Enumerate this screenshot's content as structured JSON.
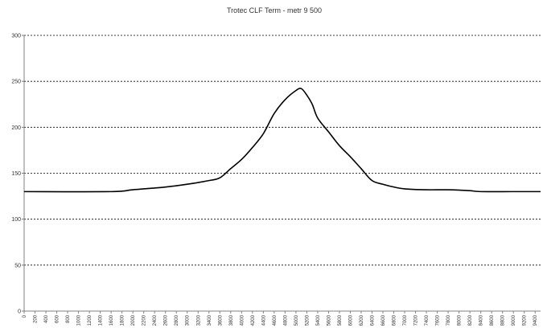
{
  "chart_data": {
    "type": "line",
    "title": "Trotec CLF Term - metr 9 500",
    "xlabel": "",
    "ylabel": "",
    "ylim": [
      0,
      300
    ],
    "yticks": [
      0,
      50,
      100,
      150,
      200,
      250,
      300
    ],
    "xlim": [
      0,
      9500
    ],
    "x_tick_step": 200,
    "grid": "horizontal-dashed",
    "legend": "none",
    "series": [
      {
        "color": "#000000",
        "x": [
          0,
          1600,
          2000,
          2600,
          3000,
          3400,
          3600,
          3800,
          4000,
          4200,
          4400,
          4600,
          4800,
          5000,
          5100,
          5200,
          5300,
          5400,
          5600,
          5800,
          6000,
          6200,
          6400,
          6600,
          6800,
          7000,
          7400,
          7800,
          8200,
          8400,
          9000,
          9500
        ],
        "y": [
          130,
          130,
          132,
          135,
          138,
          142,
          145,
          155,
          165,
          178,
          193,
          215,
          230,
          240,
          242,
          235,
          225,
          210,
          195,
          180,
          168,
          155,
          142,
          138,
          135,
          133,
          132,
          132,
          131,
          130,
          130,
          130
        ]
      }
    ]
  }
}
